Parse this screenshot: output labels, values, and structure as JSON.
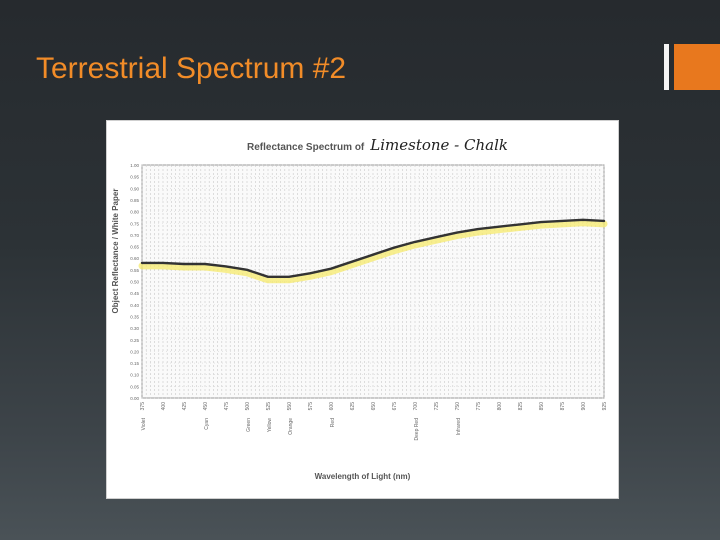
{
  "slide": {
    "title": "Terrestrial Spectrum #2"
  },
  "colors": {
    "title": "#f28c28",
    "accent": "#e8781e",
    "curve": "#333333",
    "highlight": "#f6e96b"
  },
  "chart_data": {
    "type": "line",
    "title": "Reflectance Spectrum of",
    "title_handwritten": "Limestone - Chalk",
    "xlabel": "Wavelength of Light (nm)",
    "ylabel": "Object Reflectance / White Paper",
    "xlim": [
      375,
      925
    ],
    "ylim": [
      0,
      1
    ],
    "grid": true,
    "x_ticks": [
      375,
      400,
      425,
      450,
      475,
      500,
      525,
      550,
      575,
      600,
      625,
      650,
      675,
      700,
      725,
      750,
      775,
      800,
      825,
      850,
      875,
      900,
      925
    ],
    "y_ticks": [
      0.0,
      0.05,
      0.1,
      0.15,
      0.2,
      0.25,
      0.3,
      0.35,
      0.4,
      0.45,
      0.5,
      0.55,
      0.6,
      0.65,
      0.7,
      0.75,
      0.8,
      0.85,
      0.9,
      0.95,
      1.0
    ],
    "color_bands": [
      {
        "x": 375,
        "name": "Violet"
      },
      {
        "x": 450,
        "name": "Cyan"
      },
      {
        "x": 500,
        "name": "Green"
      },
      {
        "x": 525,
        "name": "Yellow"
      },
      {
        "x": 550,
        "name": "Orange"
      },
      {
        "x": 600,
        "name": "Red"
      },
      {
        "x": 700,
        "name": "Deep Red"
      },
      {
        "x": 750,
        "name": "Infrared"
      }
    ],
    "series": [
      {
        "x": [
          375,
          400,
          425,
          450,
          475,
          500,
          525,
          550,
          575,
          600,
          625,
          650,
          675,
          700,
          725,
          750,
          775,
          800,
          825,
          850,
          875,
          900,
          925
        ],
        "y": [
          0.58,
          0.58,
          0.575,
          0.575,
          0.565,
          0.55,
          0.52,
          0.52,
          0.535,
          0.555,
          0.585,
          0.615,
          0.645,
          0.67,
          0.69,
          0.71,
          0.725,
          0.735,
          0.745,
          0.755,
          0.76,
          0.765,
          0.76
        ]
      }
    ]
  }
}
